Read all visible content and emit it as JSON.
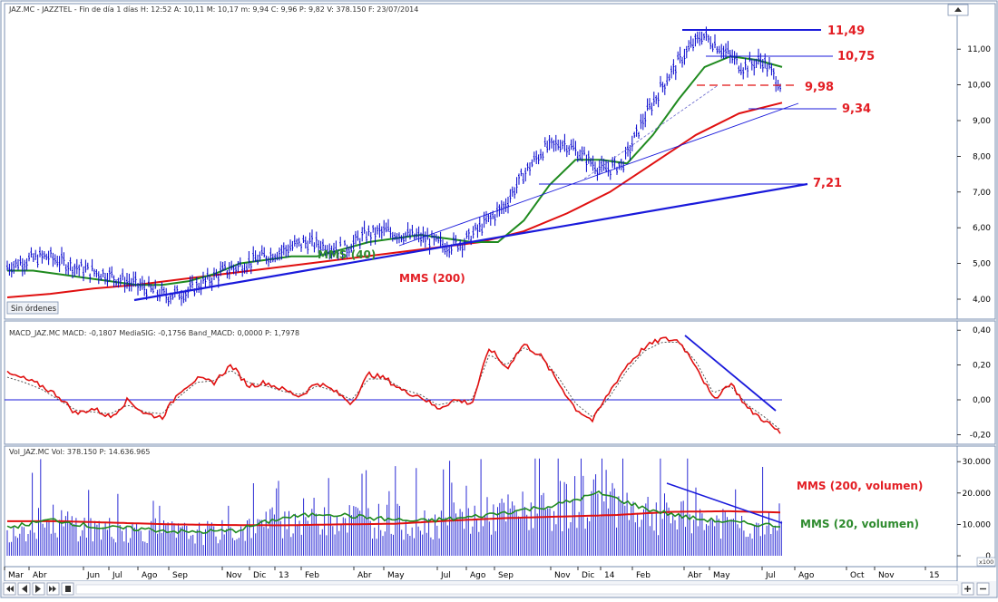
{
  "colors": {
    "price": "#0000cc",
    "trendline": "#1a1adb",
    "mms40": "#1f8a1f",
    "mms200": "#e01010",
    "macd": "#e01010",
    "signal": "#444444",
    "volume": "#2a2ad4",
    "annotation_red": "#e31e24",
    "annotation_green": "#2e8b2e",
    "frame": "#7a8fb0"
  },
  "panels": {
    "price": {
      "header": "JAZ.MC - JAZZTEL - Fin de día 1 días  H: 12:52  A: 10,11  M: 10,17  m: 9,94  C: 9,96  P: 9,82  V: 378.150  F: 23/07/2014",
      "y_ticks": [
        "4,00",
        "5,00",
        "6,00",
        "7,00",
        "8,00",
        "9,00",
        "10,00",
        "11,00"
      ],
      "button_label": "Sin órdenes",
      "annotations": {
        "level_1149": "11,49",
        "level_1075": "10,75",
        "level_998": "9,98",
        "level_934": "9,34",
        "level_721": "7,21",
        "mms40_label": "MMS (40)",
        "mms200_label": "MMS (200)"
      }
    },
    "macd": {
      "header": "MACD_JAZ.MC  MACD: -0,1807  MediaSIG: -0,1756  Band_MACD: 0,0000  P: 1,7978",
      "y_ticks": [
        "0,40",
        "0,20",
        "0,00",
        "-0,20"
      ]
    },
    "volume": {
      "header": "Vol_JAZ.MC  Vol: 378.150  P: 14.636.965",
      "y_ticks": [
        "30.000",
        "20.000",
        "10.000",
        "0"
      ],
      "unit_badge": "x100",
      "annotations": {
        "mms200_vol": "MMS (200, volumen)",
        "mms20_vol": "MMS (20, volumen)"
      }
    }
  },
  "x_axis": {
    "months": [
      "Mar",
      "Abr",
      "Jun",
      "Jul",
      "Ago",
      "Sep",
      "Nov",
      "Dic",
      "13",
      "Feb",
      "Abr",
      "May",
      "Jul",
      "Ago",
      "Sep",
      "Nov",
      "Dic",
      "14",
      "Feb",
      "Abr",
      "May",
      "Jul",
      "Ago",
      "Oct",
      "Nov",
      "15"
    ]
  },
  "chart_data": [
    {
      "type": "line",
      "title": "JAZ.MC - JAZZTEL",
      "ylim": [
        3.7,
        11.9
      ],
      "x_labels": [
        "Mar",
        "Abr",
        "Jun",
        "Jul",
        "Ago",
        "Sep",
        "Nov",
        "Dic",
        "13",
        "Feb",
        "Abr",
        "May",
        "Jul",
        "Ago",
        "Sep",
        "Nov",
        "Dic",
        "14",
        "Feb",
        "Abr",
        "May",
        "Jul"
      ],
      "series": [
        {
          "values": [
            4.9,
            5.1,
            5.2,
            5.0,
            4.8,
            4.7,
            4.5,
            4.3,
            4.1,
            4.2,
            4.5,
            4.8,
            5.0,
            5.2,
            5.4,
            5.6,
            5.5,
            5.4,
            5.8,
            5.9,
            5.8,
            5.7,
            5.5,
            5.6,
            6.1,
            6.6,
            7.5,
            8.2,
            8.4,
            8.0,
            7.6,
            7.8,
            9.0,
            10.0,
            10.8,
            11.4,
            11.0,
            10.5,
            10.7,
            9.96
          ]
        },
        {
          "name": "MMS (40)",
          "values": [
            4.8,
            4.8,
            4.7,
            4.6,
            4.5,
            4.4,
            4.4,
            4.5,
            4.7,
            5.0,
            5.1,
            5.2,
            5.2,
            5.4,
            5.6,
            5.7,
            5.8,
            5.7,
            5.6,
            5.6,
            6.2,
            7.2,
            7.9,
            7.9,
            7.8,
            8.6,
            9.6,
            10.5,
            10.8,
            10.7,
            10.5
          ]
        },
        {
          "name": "MMS (200)",
          "values": [
            4.05,
            4.15,
            4.3,
            4.4,
            4.55,
            4.7,
            4.85,
            5.0,
            5.15,
            5.3,
            5.45,
            5.6,
            5.9,
            6.4,
            7.0,
            7.8,
            8.6,
            9.2,
            9.5
          ]
        }
      ],
      "levels": [
        11.49,
        10.75,
        9.98,
        9.34,
        7.21
      ]
    },
    {
      "type": "line",
      "title": "MACD_JAZ.MC",
      "ylim": [
        -0.28,
        0.42
      ],
      "series": [
        {
          "name": "MACD",
          "values": [
            0.15,
            0.12,
            0.08,
            0.02,
            -0.08,
            -0.05,
            -0.1,
            0.0,
            -0.08,
            -0.1,
            0.05,
            0.12,
            0.1,
            0.2,
            0.08,
            0.1,
            0.06,
            0.02,
            0.1,
            0.05,
            -0.02,
            0.15,
            0.12,
            0.05,
            0.02,
            -0.05,
            0.0,
            -0.02,
            0.3,
            0.18,
            0.32,
            0.25,
            0.1,
            -0.05,
            -0.12,
            0.05,
            0.2,
            0.3,
            0.35,
            0.34,
            0.2,
            0.0,
            0.1,
            -0.05,
            -0.12,
            -0.2
          ]
        },
        {
          "name": "MediaSIG",
          "values": [
            0.13,
            0.1,
            0.06,
            0.0,
            -0.06,
            -0.07,
            -0.08,
            -0.03,
            -0.07,
            -0.08,
            0.02,
            0.1,
            0.11,
            0.17,
            0.1,
            0.08,
            0.05,
            0.03,
            0.08,
            0.05,
            0.0,
            0.12,
            0.12,
            0.06,
            0.03,
            -0.03,
            -0.01,
            0.0,
            0.26,
            0.2,
            0.3,
            0.25,
            0.13,
            -0.02,
            -0.1,
            0.02,
            0.17,
            0.28,
            0.33,
            0.33,
            0.22,
            0.04,
            0.08,
            -0.03,
            -0.1,
            -0.18
          ]
        }
      ],
      "zero_line": 0.0
    },
    {
      "type": "bar",
      "title": "Vol_JAZ.MC",
      "ylim": [
        0,
        31000
      ],
      "units": "x100",
      "series": [
        {
          "name": "MMS (200, volumen)",
          "values": [
            11000,
            11000,
            10500,
            10000,
            9800,
            9700,
            10000,
            10200,
            11200,
            12000,
            12500,
            13000,
            14000,
            14200,
            13800
          ]
        },
        {
          "name": "MMS (20, volumen)",
          "values": [
            9000,
            11500,
            9000,
            8500,
            7500,
            8000,
            12000,
            13500,
            12000,
            11000,
            12000,
            14000,
            16000,
            20000,
            15000,
            12000,
            10500,
            9500
          ]
        }
      ]
    }
  ]
}
